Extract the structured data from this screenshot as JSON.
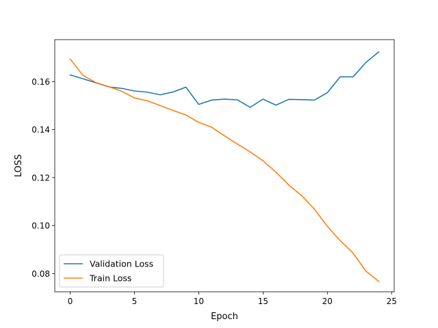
{
  "chart_data": {
    "type": "line",
    "title": "",
    "xlabel": "Epoch",
    "ylabel": "LOSS",
    "xlim": [
      -1.2,
      25.2
    ],
    "ylim": [
      0.0724,
      0.1775
    ],
    "xticks": [
      0,
      5,
      10,
      15,
      20,
      25
    ],
    "yticks": [
      0.08,
      0.1,
      0.12,
      0.14,
      0.16
    ],
    "ytick_labels": [
      "0.08",
      "0.10",
      "0.12",
      "0.14",
      "0.16"
    ],
    "grid": false,
    "legend_position": "lower-left",
    "x": [
      0,
      1,
      2,
      3,
      4,
      5,
      6,
      7,
      8,
      9,
      10,
      11,
      12,
      13,
      14,
      15,
      16,
      17,
      18,
      19,
      20,
      21,
      22,
      23,
      24
    ],
    "series": [
      {
        "name": "Validation Loss",
        "color": "#1f77b4",
        "values": [
          0.1628,
          0.1612,
          0.1595,
          0.1578,
          0.1572,
          0.1561,
          0.1556,
          0.1545,
          0.1557,
          0.1577,
          0.1505,
          0.1523,
          0.1527,
          0.1524,
          0.1493,
          0.1527,
          0.1502,
          0.1526,
          0.1525,
          0.1523,
          0.1554,
          0.162,
          0.162,
          0.168,
          0.1724
        ]
      },
      {
        "name": "Train Loss",
        "color": "#ff7f0e",
        "values": [
          0.1694,
          0.1626,
          0.1596,
          0.1579,
          0.156,
          0.1532,
          0.152,
          0.15,
          0.148,
          0.1461,
          0.143,
          0.141,
          0.1374,
          0.134,
          0.1307,
          0.127,
          0.1223,
          0.1169,
          0.1125,
          0.1068,
          0.0997,
          0.0937,
          0.0885,
          0.081,
          0.0767
        ]
      }
    ]
  }
}
